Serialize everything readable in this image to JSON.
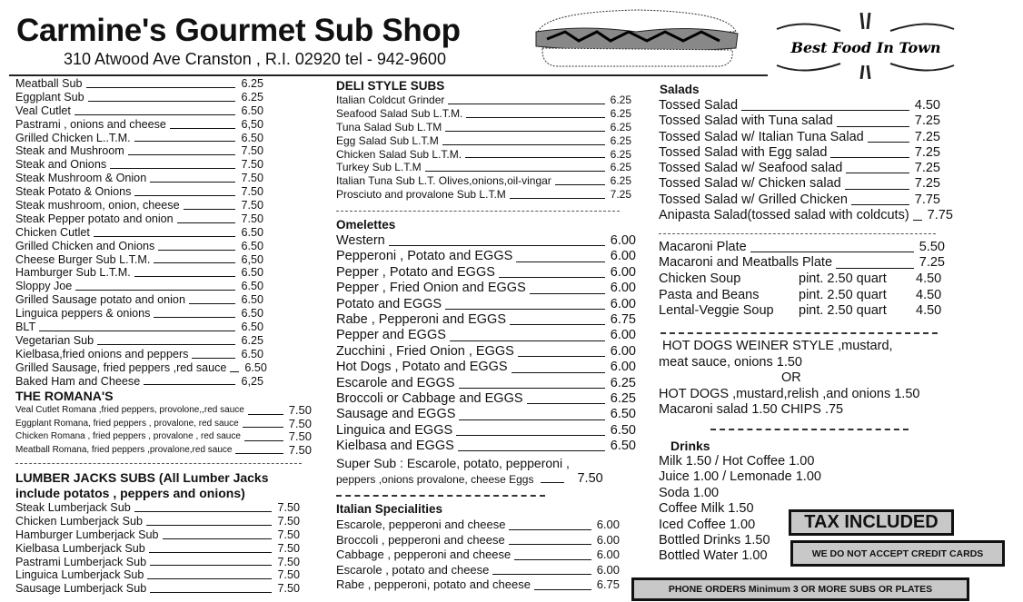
{
  "header": {
    "title": "Carmine's Gourmet Sub Shop",
    "address": "310 Atwood Ave  Cranston , R.I. 02920   tel - 942-9600",
    "logo_text": "Best Food In Town"
  },
  "subs": [
    [
      "Meatball Sub",
      "6.25"
    ],
    [
      "Eggplant  Sub",
      "6.25"
    ],
    [
      "Veal Cutlet",
      "6.50"
    ],
    [
      "Pastrami , onions and cheese",
      "6,50"
    ],
    [
      "Grilled Chicken L..T.M.",
      "6.50"
    ],
    [
      "Steak and Mushroom",
      "7.50"
    ],
    [
      "Steak and Onions",
      "7.50"
    ],
    [
      "Steak Mushroom & Onion",
      "7.50"
    ],
    [
      "Steak Potato & Onions",
      "7.50"
    ],
    [
      "Steak mushroom, onion, cheese",
      "7.50"
    ],
    [
      "Steak Pepper potato and onion",
      "7.50"
    ],
    [
      "Chicken Cutlet",
      "6.50"
    ],
    [
      "Grilled Chicken and Onions",
      "6.50"
    ],
    [
      "Cheese Burger Sub   L.T.M.",
      "6,50"
    ],
    [
      "Hamburger Sub L.T.M.",
      "6.50"
    ],
    [
      "Sloppy Joe",
      "6.50"
    ],
    [
      "Grilled Sausage potato and onion",
      "6.50"
    ],
    [
      "Linguica peppers & onions",
      "6.50"
    ],
    [
      "BLT",
      "6.50"
    ],
    [
      "Vegetarian Sub",
      "6.25"
    ],
    [
      "Kielbasa,fried onions and peppers",
      "6.50"
    ],
    [
      "Grilled Sausage, fried peppers ,red sauce",
      "6.50"
    ],
    [
      "Baked Ham and Cheese",
      "6,25"
    ]
  ],
  "romana": {
    "title": "THE ROMANA'S",
    "items": [
      [
        "Veal  Cutlet Romana ,fried peppers, provolone,,red sauce",
        "7.50"
      ],
      [
        "Eggplant Romana, fried peppers , provalone, red sauce",
        "7.50"
      ],
      [
        "Chicken Romana , fried peppers , provalone , red sauce",
        "7.50"
      ],
      [
        "Meatball Romana, fried peppers ,provalone,red sauce",
        "7.50"
      ]
    ]
  },
  "lumberjacks": {
    "title_line1": "LUMBER JACKS SUBS  (All Lumber Jacks",
    "title_line2": "include potatos , peppers and onions)",
    "items": [
      [
        "Steak Lumberjack Sub",
        "7.50"
      ],
      [
        "Chicken Lumberjack Sub",
        "7.50"
      ],
      [
        "Hamburger Lumberjack Sub",
        "7.50"
      ],
      [
        "Kielbasa Lumberjack Sub",
        "7.50"
      ],
      [
        "Pastrami Lumberjack Sub",
        "7.50"
      ],
      [
        "Linguica Lumberjack Sub",
        "7.50"
      ],
      [
        "Sausage Lumberjack  Sub",
        "7.50"
      ]
    ]
  },
  "deli": {
    "title": "DELI  STYLE SUBS",
    "items": [
      [
        "Italian Coldcut Grinder",
        "6.25"
      ],
      [
        "Seafood Salad Sub L.T.M.",
        "6.25"
      ],
      [
        "Tuna Salad Sub  L.TM",
        "6.25"
      ],
      [
        "Egg Salad Sub L.T.M",
        "6.25"
      ],
      [
        "Chicken Salad Sub L.T.M.",
        "6.25"
      ],
      [
        "Turkey Sub L.T.M",
        "6.25"
      ],
      [
        "Italian Tuna Sub  L.T. Olives,onions,oil-vingar",
        "6.25"
      ],
      [
        "Prosciuto and provalone  Sub L.T.M",
        "7.25"
      ]
    ]
  },
  "omelettes": {
    "title": "Omelettes",
    "items": [
      [
        "Western",
        "6.00"
      ],
      [
        "Pepperoni , Potato and EGGS",
        "6.00"
      ],
      [
        "Pepper , Potato and  EGGS",
        "6.00"
      ],
      [
        "Pepper , Fried Onion and EGGS",
        "6.00"
      ],
      [
        "Potato and EGGS",
        "6.00"
      ],
      [
        "Rabe , Pepperoni  and EGGS",
        "6.75"
      ],
      [
        "Pepper and EGGS",
        "6.00"
      ],
      [
        "Zucchini , Fried Onion , EGGS",
        "6.00"
      ],
      [
        "Hot Dogs , Potato and EGGS",
        "6.00"
      ],
      [
        "Escarole and  EGGS",
        "6.25"
      ],
      [
        "Broccoli or Cabbage and  EGGS",
        "6.25"
      ],
      [
        "Sausage and EGGS",
        "6.50"
      ],
      [
        "Linguica and EGGS",
        "6.50"
      ],
      [
        "Kielbasa and EGGS",
        "6.50"
      ]
    ],
    "super_line1": "Super Sub : Escarole, potato, pepperoni ,",
    "super_line2": "peppers ,onions provalone, cheese  Eggs",
    "super_price": "7.50"
  },
  "italian": {
    "title": "Italian Specialities",
    "items": [
      [
        "Escarole, pepperoni and cheese",
        "6.00"
      ],
      [
        "Broccoli , pepperoni and cheese",
        "6.00"
      ],
      [
        "Cabbage , pepperoni and cheese",
        "6.00"
      ],
      [
        "Escarole , potato and cheese",
        "6.00"
      ],
      [
        "Rabe , pepperoni, potato and cheese",
        "6.75"
      ]
    ]
  },
  "salads": {
    "title": "Salads",
    "items": [
      [
        "Tossed Salad",
        "4.50"
      ],
      [
        "Tossed Salad with Tuna salad",
        "7.25"
      ],
      [
        "Tossed Salad w/ Italian Tuna Salad",
        "7.25"
      ],
      [
        "Tossed Salad with Egg salad",
        "7.25"
      ],
      [
        "Tossed Salad w/ Seafood salad",
        "7.25"
      ],
      [
        "Tossed Salad w/ Chicken salad",
        "7.25"
      ],
      [
        "Tossed Salad w/ Grilled Chicken",
        "7.75"
      ],
      [
        "Anipasta Salad(tossed salad with coldcuts)",
        "7.75"
      ]
    ]
  },
  "plates": [
    [
      "Macaroni Plate",
      "5.50"
    ],
    [
      "Macaroni and Meatballs  Plate",
      "7.25"
    ]
  ],
  "soups": [
    {
      "name": "Chicken Soup",
      "pint": "pint. 2.50  quart",
      "price": "4.50"
    },
    {
      "name": "Pasta and Beans",
      "pint": "pint. 2.50  quart",
      "price": "4.50"
    },
    {
      "name": "Lental-Veggie Soup",
      "pint": "pint. 2.50  quart",
      "price": "4.50"
    }
  ],
  "hotdogs": {
    "line1": "HOT DOGS WEINER STYLE ,mustard,",
    "line2": "meat sauce, onions 1.50",
    "or": "OR",
    "line3": "HOT DOGS ,mustard,relish ,and onions 1.50",
    "line4": "Macaroni salad   1.50      CHIPS .75"
  },
  "drinks": {
    "title": "Drinks",
    "items": [
      "Milk    1.50  / Hot Coffee  1.00",
      "Juice  1.00 / Lemonade    1.00",
      "Soda  1.00",
      "Coffee Milk    1.50",
      "Iced Coffee    1.00",
      "Bottled Drinks 1.50",
      "Bottled Water  1.00"
    ]
  },
  "notices": {
    "tax": "TAX INCLUDED",
    "credit": "WE DO NOT ACCEPT CREDIT CARDS",
    "phone": "PHONE ORDERS Minimum 3 OR MORE SUBS OR PLATES"
  }
}
